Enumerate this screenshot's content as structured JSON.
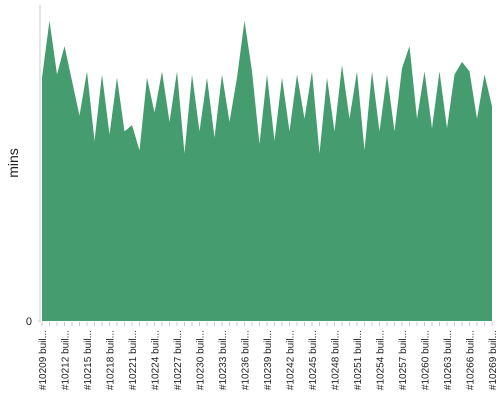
{
  "chart_data": {
    "type": "area",
    "ylabel": "mins",
    "categories": [
      "#10209 buil...",
      null,
      null,
      "#10212 buil...",
      null,
      null,
      "#10215 buil...",
      null,
      null,
      "#10218 buil...",
      null,
      null,
      "#10221 buil...",
      null,
      null,
      "#10224 buil...",
      null,
      null,
      "#10227 buil...",
      null,
      null,
      "#10230 buil...",
      null,
      null,
      "#10233 buil...",
      null,
      null,
      "#10236 buil...",
      null,
      null,
      "#10239 buil...",
      null,
      null,
      "#10242 buil...",
      null,
      null,
      "#10245 buil...",
      null,
      null,
      "#10248 buil...",
      null,
      null,
      "#10251 buil...",
      null,
      null,
      "#10254 buil...",
      null,
      null,
      "#10257 buil...",
      null,
      null,
      "#10260 buil...",
      null,
      null,
      "#10263 buil...",
      null,
      null,
      "#10266 buil...",
      null,
      null,
      "#10269 buil..."
    ],
    "values": [
      77,
      95,
      78,
      87,
      76,
      65,
      79,
      57,
      78,
      59,
      77,
      60,
      62,
      54,
      77,
      66,
      79,
      63,
      79,
      53,
      78,
      60,
      77,
      58,
      78,
      63,
      77,
      95,
      79,
      56,
      78,
      57,
      77,
      60,
      78,
      64,
      79,
      53,
      77,
      60,
      81,
      64,
      79,
      54,
      79,
      60,
      78,
      60,
      80,
      87,
      64,
      79,
      61,
      79,
      61,
      78,
      82,
      79,
      64,
      78,
      68
    ],
    "color": "#459c6e",
    "ylim": [
      0,
      100
    ],
    "yticks": [
      0
    ]
  }
}
